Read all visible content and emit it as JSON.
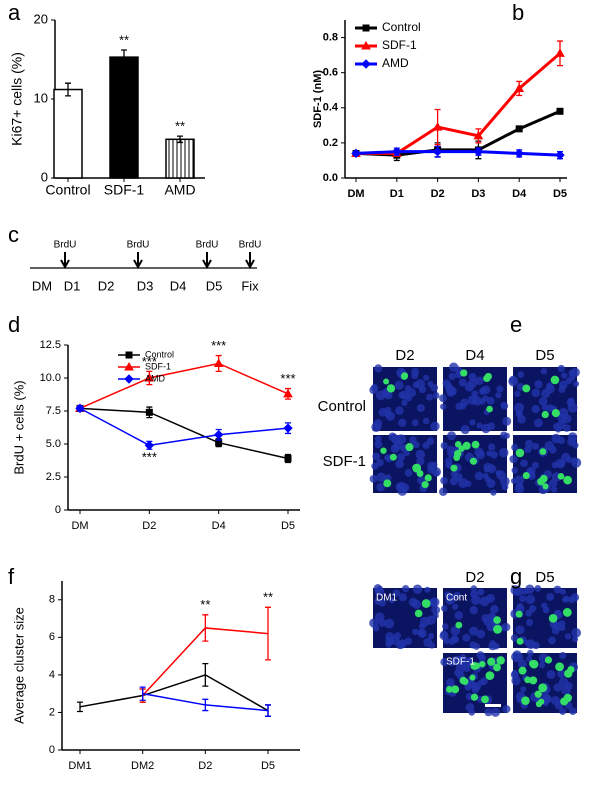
{
  "panels": [
    "a",
    "b",
    "c",
    "d",
    "e",
    "f",
    "g"
  ],
  "chart_data": [
    {
      "type": "bar",
      "ylabel": "Ki67+ cells (%)",
      "categories": [
        "Control",
        "SDF-1",
        "AMD"
      ],
      "values": [
        11.2,
        15.3,
        4.9
      ],
      "errors": [
        0.8,
        0.9,
        0.4
      ],
      "colors": [
        "#ffffff",
        "#000000",
        "#ffffff"
      ],
      "hatch": [
        null,
        null,
        "vertical"
      ],
      "ylim": [
        0,
        20
      ],
      "yticks": [
        0,
        10,
        20
      ],
      "annotations": [
        {
          "text": "**",
          "category": "SDF-1"
        },
        {
          "text": "**",
          "category": "AMD"
        }
      ]
    },
    {
      "type": "line",
      "ylabel": "SDF-1 (nM)",
      "categories": [
        "DM",
        "D1",
        "D2",
        "D3",
        "D4",
        "D5"
      ],
      "series": [
        {
          "name": "Control",
          "color": "#000000",
          "marker": "s",
          "values": [
            0.14,
            0.13,
            0.16,
            0.16,
            0.28,
            0.38
          ],
          "errors": [
            0.01,
            0.03,
            0.04,
            0.05,
            0.01,
            0.01
          ]
        },
        {
          "name": "SDF-1",
          "color": "#ff0000",
          "marker": "^",
          "values": [
            0.14,
            0.14,
            0.29,
            0.24,
            0.51,
            0.71
          ],
          "errors": [
            0.01,
            0.01,
            0.1,
            0.04,
            0.04,
            0.07
          ]
        },
        {
          "name": "AMD",
          "color": "#0000ff",
          "marker": "D",
          "values": [
            0.14,
            0.15,
            0.15,
            0.15,
            0.14,
            0.13
          ],
          "errors": [
            0.01,
            0.02,
            0.03,
            0.02,
            0.02,
            0.02
          ]
        }
      ],
      "ylim": [
        0,
        0.9
      ],
      "yticks": [
        {
          "value": 0,
          "label": "0.0"
        },
        0.2,
        0.4,
        0.6,
        0.8
      ],
      "legend": "upper left",
      "line_width": 3
    },
    {
      "type": "line",
      "ylabel": "BrdU + cells (%)",
      "categories": [
        "DM",
        "D2",
        "D4",
        "D5"
      ],
      "series": [
        {
          "name": "Control",
          "color": "#000000",
          "marker": "s",
          "values": [
            7.7,
            7.4,
            5.1,
            3.9
          ],
          "errors": [
            0.2,
            0.4,
            0.3,
            0.3
          ]
        },
        {
          "name": "SDF-1",
          "color": "#ff0000",
          "marker": "^",
          "values": [
            7.7,
            10.0,
            11.1,
            8.8
          ],
          "errors": [
            0.2,
            0.5,
            0.6,
            0.4
          ]
        },
        {
          "name": "AMD",
          "color": "#0000ff",
          "marker": "D",
          "values": [
            7.7,
            4.9,
            5.7,
            6.2
          ],
          "errors": [
            0.2,
            0.3,
            0.4,
            0.4
          ]
        }
      ],
      "ylim": [
        0,
        12.5
      ],
      "yticks": [
        0,
        2.5,
        {
          "value": 5,
          "label": "5.0"
        },
        7.5,
        {
          "value": 10,
          "label": "10.0"
        },
        12.5
      ],
      "legend": "upper left",
      "line_width": 1.5,
      "annotations": [
        {
          "text": "***",
          "category": "D2",
          "series": "SDF-1"
        },
        {
          "text": "***",
          "category": "D2",
          "series": "AMD"
        },
        {
          "text": "***",
          "category": "D4",
          "series": "SDF-1"
        },
        {
          "text": "***",
          "category": "D5",
          "series": "SDF-1"
        }
      ]
    },
    {
      "type": "line",
      "ylabel": "Average cluster size",
      "categories": [
        "DM1",
        "DM2",
        "D2",
        "D5"
      ],
      "series": [
        {
          "color": "#000000",
          "values": [
            2.3,
            2.9,
            4.0,
            2.1
          ],
          "errors": [
            0.25,
            0.35,
            0.6,
            0.3
          ]
        },
        {
          "color": "#ff0000",
          "values": [
            null,
            2.9,
            6.5,
            6.2
          ],
          "errors": [
            null,
            0.35,
            0.7,
            1.4
          ]
        },
        {
          "color": "#0000ff",
          "values": [
            null,
            3.0,
            2.4,
            2.1
          ],
          "errors": [
            null,
            0.35,
            0.3,
            0.3
          ]
        }
      ],
      "ylim": [
        0,
        9
      ],
      "yticks": [
        0,
        2,
        4,
        6,
        8
      ],
      "line_width": 1.5,
      "annotations": [
        {
          "text": "**",
          "category": "D2",
          "series": 1
        },
        {
          "text": "**",
          "category": "D5",
          "series": 1
        }
      ]
    }
  ],
  "timeline": {
    "days": [
      "DM",
      "D1",
      "D2",
      "D3",
      "D4",
      "D5",
      "Fix"
    ],
    "pulses": [
      "BrdU",
      "BrdU",
      "BrdU",
      "BrdU"
    ]
  },
  "panel_e": {
    "columns": [
      "D2",
      "D4",
      "D5"
    ],
    "rows": [
      "Control",
      "SDF-1"
    ]
  },
  "panel_g": {
    "columns": [
      "D2",
      "D5"
    ],
    "image_labels": [
      "DM1",
      "Cont",
      "SDF-1"
    ]
  }
}
